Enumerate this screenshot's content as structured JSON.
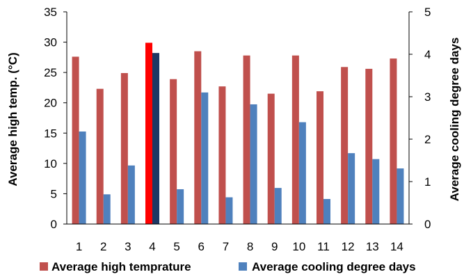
{
  "chart_data": {
    "type": "bar",
    "categories": [
      "1",
      "2",
      "3",
      "4",
      "5",
      "6",
      "7",
      "8",
      "9",
      "10",
      "11",
      "12",
      "13",
      "14"
    ],
    "series": [
      {
        "name": "Average high temprature",
        "axis": "left",
        "color": "#c0504d",
        "values": [
          27.6,
          22.3,
          24.9,
          29.9,
          23.9,
          28.5,
          22.7,
          27.8,
          21.5,
          27.8,
          21.9,
          25.9,
          25.6,
          27.3
        ]
      },
      {
        "name": "Average cooling degree days",
        "axis": "right",
        "color": "#4f81bd",
        "values": [
          2.18,
          0.7,
          1.38,
          4.03,
          0.82,
          3.1,
          0.63,
          2.82,
          0.85,
          2.4,
          0.59,
          1.67,
          1.53,
          1.31
        ]
      }
    ],
    "highlight": {
      "index": 3,
      "colors": [
        "#ff0000",
        "#1f3864"
      ]
    },
    "ylabel": "Average high temp. (°C)",
    "y2label": "Average cooling degree days",
    "ylim": [
      0,
      35
    ],
    "y2lim": [
      0,
      5
    ],
    "yticks": [
      0,
      5,
      10,
      15,
      20,
      25,
      30,
      35
    ],
    "y2ticks": [
      0,
      1,
      2,
      3,
      4,
      5
    ],
    "grid": false,
    "legend_position": "bottom"
  }
}
